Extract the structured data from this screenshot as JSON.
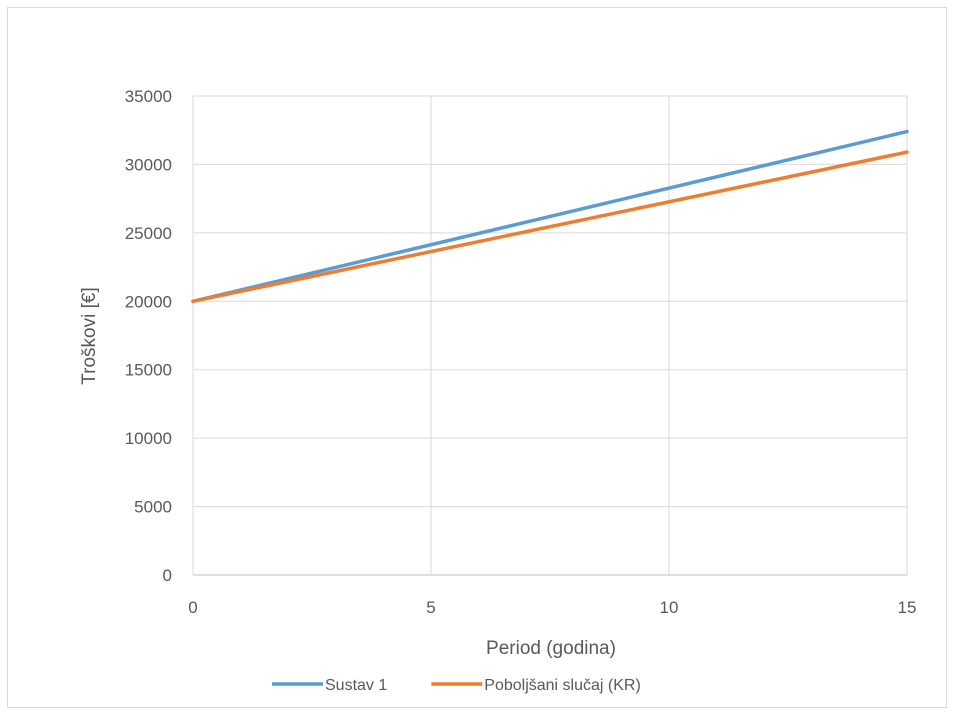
{
  "chart_data": {
    "type": "line",
    "xlabel": "Period (godina)",
    "ylabel": "Troškovi [€]",
    "xlim": [
      0,
      15
    ],
    "ylim": [
      0,
      35000
    ],
    "x_ticks": [
      0,
      5,
      10,
      15
    ],
    "y_ticks": [
      0,
      5000,
      10000,
      15000,
      20000,
      25000,
      30000,
      35000
    ],
    "grid": true,
    "legend_position": "bottom",
    "series": [
      {
        "name": "Sustav 1",
        "color": "#5b9bd5",
        "x": [
          0,
          15
        ],
        "values": [
          20000,
          32400
        ]
      },
      {
        "name": "Poboljšani slučaj (KR)",
        "color": "#ed7d31",
        "x": [
          0,
          15
        ],
        "values": [
          20000,
          30900
        ]
      }
    ]
  }
}
